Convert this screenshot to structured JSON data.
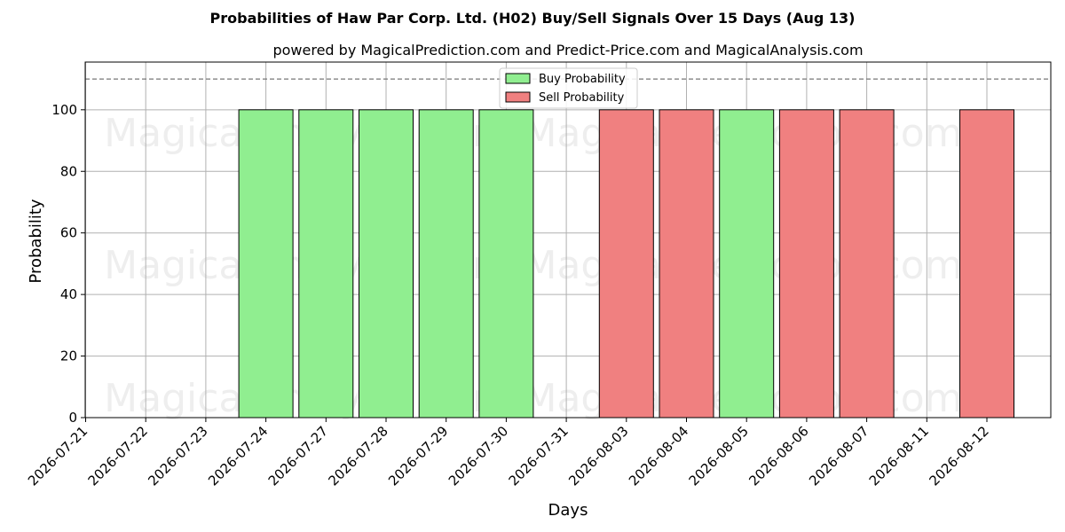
{
  "chart_data": {
    "type": "bar",
    "title": "Probabilities of Haw Par Corp. Ltd. (H02) Buy/Sell Signals Over 15 Days (Aug 13)",
    "subtitle": "powered by MagicalPrediction.com and Predict-Price.com and MagicalAnalysis.com",
    "xlabel": "Days",
    "ylabel": "Probability",
    "categories": [
      "2026-07-21",
      "2026-07-22",
      "2026-07-23",
      "2026-07-24",
      "2026-07-27",
      "2026-07-28",
      "2026-07-29",
      "2026-07-30",
      "2026-07-31",
      "2026-08-03",
      "2026-08-04",
      "2026-08-05",
      "2026-08-06",
      "2026-08-07",
      "2026-08-11",
      "2026-08-12"
    ],
    "series": [
      {
        "name": "Buy Probability",
        "color": "#90ee90",
        "values": [
          0,
          0,
          0,
          100,
          100,
          100,
          100,
          100,
          0,
          0,
          0,
          100,
          0,
          0,
          0,
          0
        ]
      },
      {
        "name": "Sell Probability",
        "color": "#f08080",
        "values": [
          0,
          0,
          0,
          0,
          0,
          0,
          0,
          0,
          0,
          100,
          100,
          0,
          100,
          100,
          0,
          100
        ]
      }
    ],
    "ylim": [
      0,
      115.5
    ],
    "yticks": [
      0,
      20,
      40,
      60,
      80,
      100
    ],
    "reference_line": 110,
    "grid": true,
    "legend_position": "top-center",
    "watermarks": [
      "MagicalAnalysis.com",
      "MagicalPrediction.com"
    ]
  }
}
